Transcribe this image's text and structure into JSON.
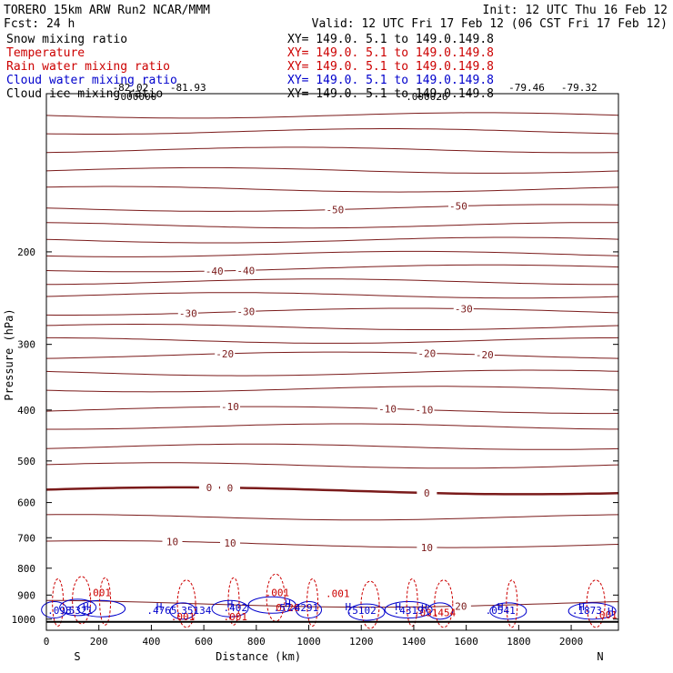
{
  "header": {
    "left_line1": "TORERO  15km ARW   Run2    NCAR/MMM",
    "left_line2": "Fcst:   24 h",
    "init": "Init: 12 UTC Thu 16 Feb 12",
    "valid": "Valid: 12 UTC Fri 17 Feb 12 (06 CST Fri 17 Feb 12)"
  },
  "legend": [
    {
      "label": "Snow mixing ratio",
      "xy": "XY= 149.0.  5.1 to 149.0.149.8",
      "color": "#000000"
    },
    {
      "label": "Temperature",
      "xy": "XY= 149.0.  5.1 to 149.0.149.8",
      "color": "#cc0000"
    },
    {
      "label": "Rain water mixing ratio",
      "xy": "XY= 149.0.  5.1 to 149.0.149.8",
      "color": "#cc0000"
    },
    {
      "label": "Cloud water mixing ratio",
      "xy": "XY= 149.0.  5.1 to 149.0.149.8",
      "color": "#0000cc"
    },
    {
      "label": "Cloud ice mixing ratio",
      "xy": "XY= 149.0.  5.1 to 149.0.149.8",
      "color": "#000000"
    }
  ],
  "chart_data": {
    "type": "contour",
    "xlabel": "Distance (km)",
    "ylabel": "Pressure (hPa)",
    "xlim": [
      0,
      2180
    ],
    "ylim": [
      100,
      1050
    ],
    "y_scale": "log",
    "xticks": [
      0,
      200,
      400,
      600,
      800,
      1000,
      1200,
      1400,
      1600,
      1800,
      2000
    ],
    "yticks": [
      200,
      300,
      400,
      500,
      600,
      700,
      800,
      900,
      1000
    ],
    "x_end_labels": {
      "left": "S",
      "right": "N"
    },
    "temperature_contours": [
      {
        "level": -50,
        "label": "-50",
        "label_x": [
          1100,
          1570
        ]
      },
      {
        "level": -40,
        "label": "-40",
        "label_x": [
          640,
          760
        ]
      },
      {
        "level": -30,
        "label": "-30",
        "label_x": [
          540,
          760,
          1590
        ]
      },
      {
        "level": -20,
        "label": "-20",
        "label_x": [
          680,
          1450,
          1670
        ]
      },
      {
        "level": -10,
        "label": "-10",
        "label_x": [
          700,
          1300,
          1440
        ]
      },
      {
        "level": 0,
        "label": "0",
        "label_x": [
          620,
          700,
          1450
        ]
      },
      {
        "level": 10,
        "label": "10",
        "label_x": [
          480,
          700,
          1450
        ]
      },
      {
        "level": 20,
        "label": "20",
        "label_x": [
          1580
        ]
      }
    ],
    "top_labels": [
      {
        "text": "-82.02",
        "x": 320,
        "color": "#000000"
      },
      {
        "text": "-81.93",
        "x": 540,
        "color": "#000000"
      },
      {
        "text": "-79.46",
        "x": 1830,
        "color": "#000000"
      },
      {
        "text": "-79.32",
        "x": 2030,
        "color": "#000000"
      },
      {
        "text": ".000000",
        "x": 340,
        "color": "#000000"
      },
      {
        "text": ".000026",
        "x": 1450,
        "color": "#000000"
      }
    ],
    "rain_labels": [
      {
        "text": ".001",
        "x": 200,
        "p": 905,
        "color": "#cc0000"
      },
      {
        "text": ".001",
        "x": 880,
        "p": 905,
        "color": "#cc0000"
      },
      {
        "text": ".001",
        "x": 1110,
        "p": 908,
        "color": "#cc0000"
      },
      {
        "text": ".001",
        "x": 520,
        "p": 1005,
        "color": "#cc0000"
      },
      {
        "text": ".001",
        "x": 720,
        "p": 1005,
        "color": "#cc0000"
      },
      {
        "text": ".031454",
        "x": 1480,
        "p": 988,
        "color": "#cc0000"
      },
      {
        "text": ".001",
        "x": 2130,
        "p": 997,
        "color": "#cc0000"
      },
      {
        "text": "0.20",
        "x": 920,
        "p": 965,
        "color": "#cc0000"
      }
    ],
    "cloud_labels": [
      {
        "text": ".098",
        "x": 50,
        "p": 978,
        "color": "#0000cc"
      },
      {
        "text": ".5321",
        "x": 120,
        "p": 978,
        "color": "#0000cc"
      },
      {
        "text": ".4765",
        "x": 440,
        "p": 978,
        "color": "#0000cc"
      },
      {
        "text": ".35134",
        "x": 560,
        "p": 978,
        "color": "#0000cc"
      },
      {
        "text": ".402",
        "x": 720,
        "p": 966,
        "color": "#0000cc"
      },
      {
        "text": ".57",
        "x": 900,
        "p": 966,
        "color": "#0000cc"
      },
      {
        "text": ".4291",
        "x": 980,
        "p": 966,
        "color": "#0000cc"
      },
      {
        "text": ".5102",
        "x": 1200,
        "p": 978,
        "color": "#0000cc"
      },
      {
        "text": ".4319",
        "x": 1380,
        "p": 978,
        "color": "#0000cc"
      },
      {
        "text": ".0541",
        "x": 1730,
        "p": 978,
        "color": "#0000cc"
      },
      {
        "text": ".1873",
        "x": 2060,
        "p": 978,
        "color": "#0000cc"
      }
    ],
    "h_markers": [
      {
        "text": "H",
        "x": 150,
        "p": 962
      },
      {
        "text": "H",
        "x": 430,
        "p": 962
      },
      {
        "text": "H",
        "x": 700,
        "p": 950
      },
      {
        "text": "H",
        "x": 920,
        "p": 948
      },
      {
        "text": "H",
        "x": 1150,
        "p": 962
      },
      {
        "text": "H",
        "x": 1340,
        "p": 962
      },
      {
        "text": "H",
        "x": 1440,
        "p": 968
      },
      {
        "text": "H",
        "x": 1730,
        "p": 962
      },
      {
        "text": "H",
        "x": 2040,
        "p": 962
      },
      {
        "text": "H",
        "x": 2150,
        "p": 982
      }
    ]
  }
}
